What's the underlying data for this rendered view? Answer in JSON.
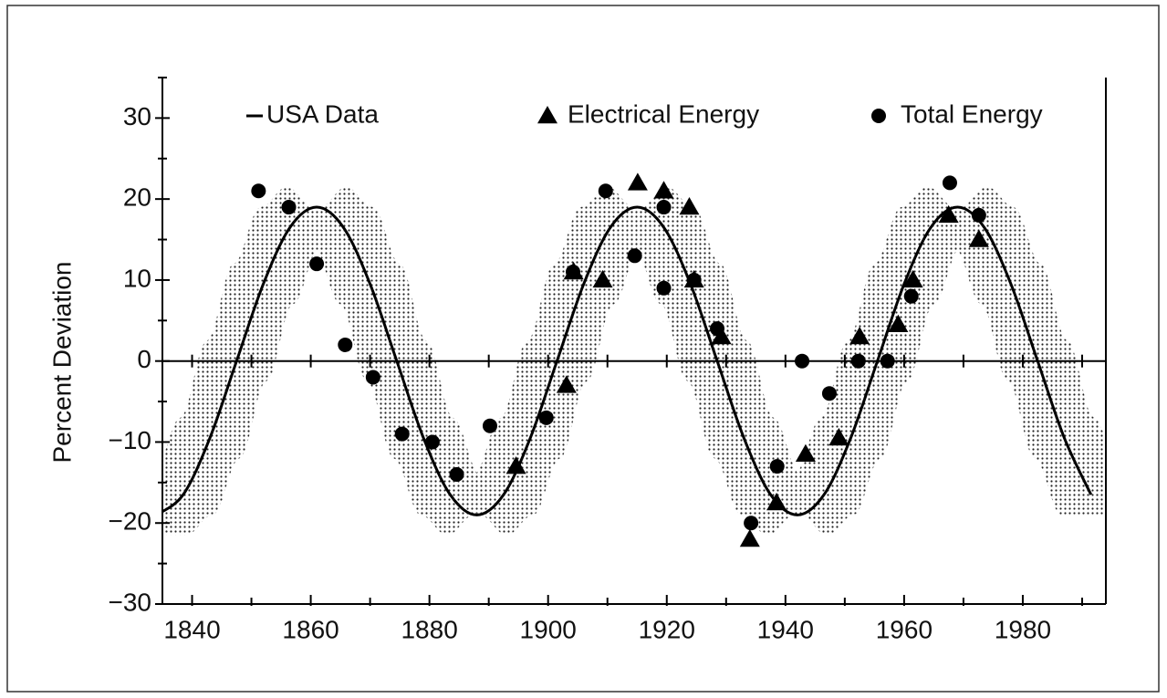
{
  "chart_data": {
    "type": "line+scatter",
    "ylabel": "Percent Deviation",
    "xlim": [
      1835,
      1994
    ],
    "ylim": [
      -30,
      35
    ],
    "xticks": [
      1840,
      1860,
      1880,
      1900,
      1920,
      1940,
      1960,
      1980
    ],
    "xminor": [
      1850,
      1870,
      1890,
      1910,
      1930,
      1950,
      1970,
      1990
    ],
    "yticks": [
      {
        "value": -30,
        "label": "−30"
      },
      {
        "value": -20,
        "label": "−20"
      },
      {
        "value": -10,
        "label": "−10"
      },
      0,
      10,
      20,
      30
    ],
    "yminor": [
      -25,
      -15,
      -5,
      5,
      15,
      25,
      35
    ],
    "zero_line": true,
    "band": {
      "x_offset": 5,
      "y_offset": 2.5
    },
    "series": [
      {
        "name": "USA Data",
        "kind": "line",
        "color": "#000000",
        "x": [
          1834,
          1838.5,
          1843,
          1847.5,
          1852,
          1856.5,
          1861,
          1865.5,
          1870,
          1874.5,
          1879,
          1883.5,
          1888,
          1892.5,
          1897,
          1901.5,
          1906,
          1910.5,
          1915,
          1919.5,
          1924,
          1928.5,
          1933,
          1937.5,
          1942,
          1946.5,
          1951,
          1955.5,
          1960,
          1964.5,
          1969,
          1973.5,
          1978,
          1982.5,
          1987,
          1991.5
        ],
        "values": [
          -19,
          -16.5,
          -9.5,
          0,
          9.5,
          16.5,
          19,
          16.5,
          9.5,
          0,
          -9.5,
          -16.5,
          -19,
          -16.5,
          -9.5,
          0,
          9.5,
          16.5,
          19,
          16.5,
          9.5,
          0,
          -9.5,
          -16.5,
          -19,
          -16.5,
          -9.5,
          0,
          9.5,
          16.5,
          19,
          16.5,
          9.5,
          0,
          -9.5,
          -16.5
        ]
      },
      {
        "name": "Electrical Energy",
        "kind": "triangle",
        "color": "#000000",
        "x": [
          1894.6,
          1903.1,
          1904.3,
          1909.2,
          1915.1,
          1919.5,
          1923.8,
          1924.6,
          1929.2,
          1934,
          1938.5,
          1943.4,
          1949,
          1952.5,
          1959,
          1961.5,
          1967.5,
          1972.6
        ],
        "values": [
          -13,
          -3,
          11,
          10,
          22,
          21,
          19,
          10,
          3,
          -22,
          -17.5,
          -11.5,
          -9.5,
          3,
          4.5,
          10,
          18,
          15
        ]
      },
      {
        "name": "Total Energy",
        "kind": "circle",
        "color": "#000000",
        "x": [
          1851.2,
          1856.3,
          1861,
          1865.8,
          1870.5,
          1875.4,
          1880.5,
          1884.6,
          1890.2,
          1899.7,
          1904.2,
          1909.7,
          1914.6,
          1919.5,
          1919.5,
          1924.6,
          1928.5,
          1934.2,
          1938.6,
          1942.8,
          1947.4,
          1952.3,
          1957.2,
          1961.2,
          1967.7,
          1972.6
        ],
        "values": [
          21,
          19,
          12,
          2,
          -2,
          -9,
          -10,
          -14,
          -8,
          -7,
          11,
          21,
          13,
          9,
          19,
          10,
          4,
          -20,
          -13,
          0,
          -4,
          0,
          0,
          8,
          22,
          18
        ]
      }
    ]
  }
}
